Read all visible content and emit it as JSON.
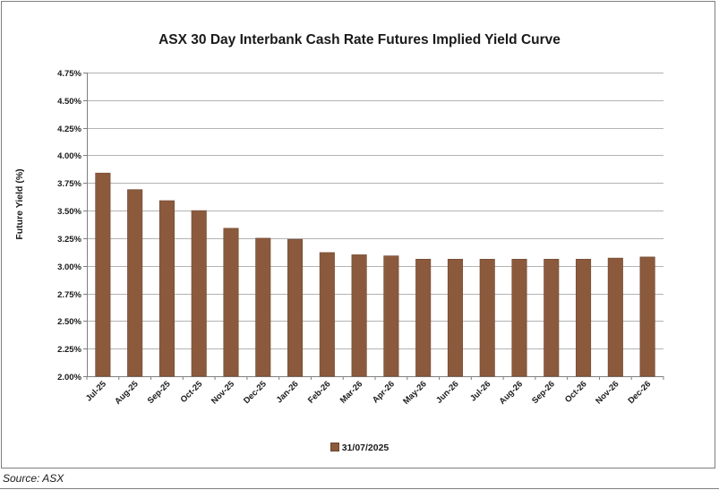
{
  "chart_data": {
    "type": "bar",
    "title": "ASX 30 Day Interbank Cash Rate Futures Implied Yield Curve",
    "ylabel": "Future Yield (%)",
    "xlabel": "",
    "categories": [
      "Jul-25",
      "Aug-25",
      "Sep-25",
      "Oct-25",
      "Nov-25",
      "Dec-25",
      "Jan-26",
      "Feb-26",
      "Mar-26",
      "Apr-26",
      "May-26",
      "Jun-26",
      "Jul-26",
      "Aug-26",
      "Sep-26",
      "Oct-26",
      "Nov-26",
      "Dec-26"
    ],
    "series": [
      {
        "name": "31/07/2025",
        "color": "#8b5a3c",
        "values": [
          3.84,
          3.69,
          3.59,
          3.5,
          3.34,
          3.25,
          3.24,
          3.12,
          3.1,
          3.09,
          3.06,
          3.06,
          3.06,
          3.06,
          3.06,
          3.06,
          3.07,
          3.08
        ]
      }
    ],
    "ylim": [
      2.0,
      4.75
    ],
    "yticks": [
      "2.00%",
      "2.25%",
      "2.50%",
      "2.75%",
      "3.00%",
      "3.25%",
      "3.50%",
      "3.75%",
      "4.00%",
      "4.25%",
      "4.50%",
      "4.75%"
    ],
    "grid": true,
    "legend_position": "bottom"
  },
  "legend": {
    "label": "31/07/2025"
  },
  "source": "Source: ASX"
}
